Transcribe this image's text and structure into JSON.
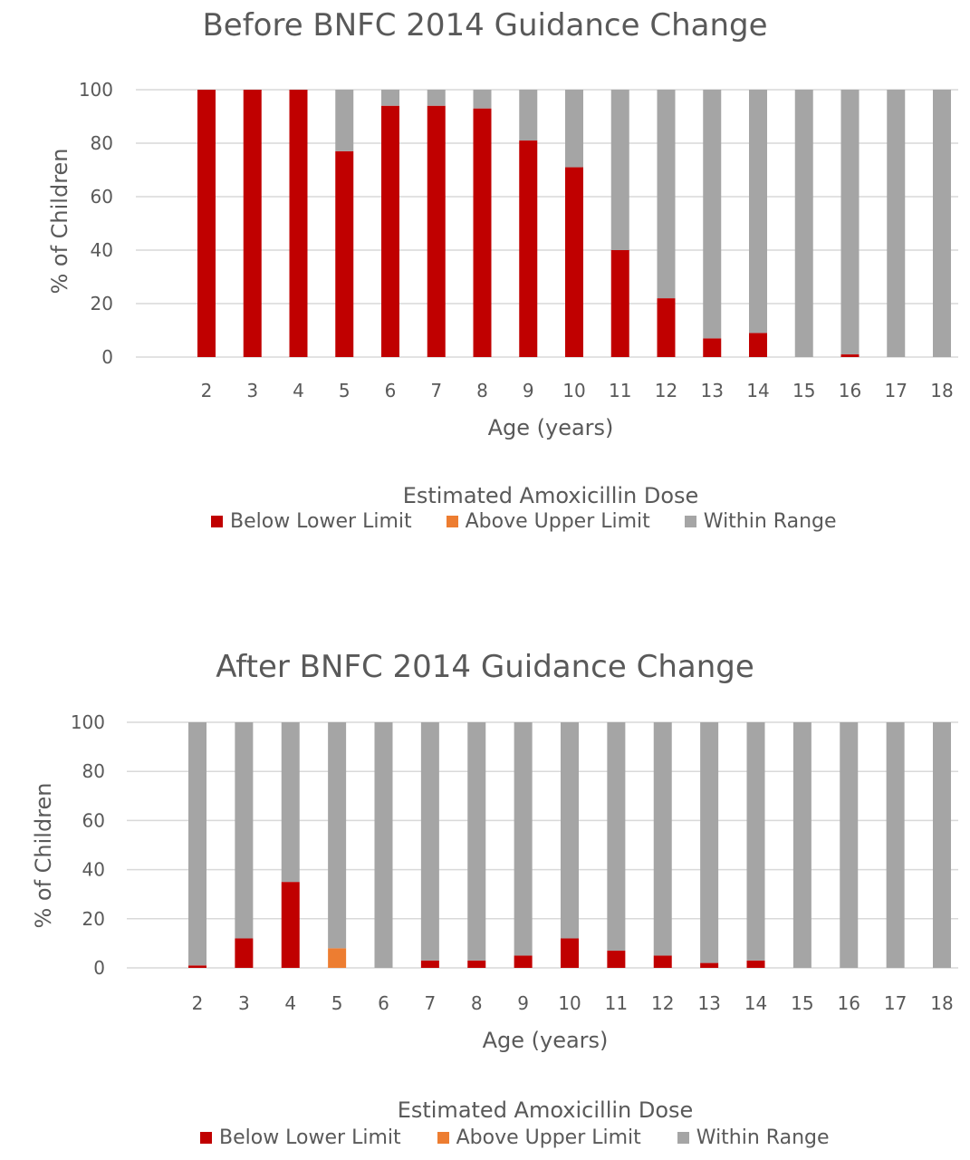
{
  "colors": {
    "below": "#C00000",
    "above": "#ED7D31",
    "within": "#A5A5A5",
    "grid": "#D9D9D9",
    "text": "#595959"
  },
  "chart_data": [
    {
      "type": "bar",
      "stacked": true,
      "title": "Before BNFC 2014 Guidance Change",
      "xlabel": "Age (years)",
      "ylabel": "% of Children",
      "ylim": [
        0,
        100
      ],
      "yticks": [
        "0",
        "20",
        "40",
        "60",
        "80",
        "100"
      ],
      "grid": true,
      "categories": [
        "2",
        "3",
        "4",
        "5",
        "6",
        "7",
        "8",
        "9",
        "10",
        "11",
        "12",
        "13",
        "14",
        "15",
        "16",
        "17",
        "18"
      ],
      "legend_title": "Estimated Amoxicillin Dose",
      "legend_position": "bottom",
      "series": [
        {
          "name": "Below Lower Limit",
          "color_key": "below",
          "values": [
            100,
            100,
            100,
            77,
            94,
            94,
            93,
            81,
            71,
            40,
            22,
            7,
            9,
            0,
            1,
            0,
            0
          ]
        },
        {
          "name": "Above Upper Limit",
          "color_key": "above",
          "values": [
            0,
            0,
            0,
            0,
            0,
            0,
            0,
            0,
            0,
            0,
            0,
            0,
            0,
            0,
            0,
            0,
            0
          ]
        },
        {
          "name": "Within Range",
          "color_key": "within",
          "values": [
            0,
            0,
            0,
            23,
            6,
            6,
            7,
            19,
            29,
            60,
            78,
            93,
            91,
            100,
            99,
            100,
            100
          ]
        }
      ]
    },
    {
      "type": "bar",
      "stacked": true,
      "title": "After BNFC 2014 Guidance Change",
      "xlabel": "Age (years)",
      "ylabel": "% of Children",
      "ylim": [
        0,
        100
      ],
      "yticks": [
        "0",
        "20",
        "40",
        "60",
        "80",
        "100"
      ],
      "grid": true,
      "categories": [
        "2",
        "3",
        "4",
        "5",
        "6",
        "7",
        "8",
        "9",
        "10",
        "11",
        "12",
        "13",
        "14",
        "15",
        "16",
        "17",
        "18"
      ],
      "legend_title": "Estimated Amoxicillin Dose",
      "legend_position": "bottom",
      "series": [
        {
          "name": "Below Lower Limit",
          "color_key": "below",
          "values": [
            1,
            12,
            35,
            0,
            0,
            3,
            3,
            5,
            12,
            7,
            5,
            2,
            3,
            0,
            0,
            0,
            0
          ]
        },
        {
          "name": "Above Upper Limit",
          "color_key": "above",
          "values": [
            0,
            0,
            0,
            8,
            0,
            0,
            0,
            0,
            0,
            0,
            0,
            0,
            0,
            0,
            0,
            0,
            0
          ]
        },
        {
          "name": "Within Range",
          "color_key": "within",
          "values": [
            99,
            88,
            65,
            92,
            100,
            97,
            97,
            95,
            88,
            93,
            95,
            98,
            97,
            100,
            100,
            100,
            100
          ]
        }
      ]
    }
  ]
}
